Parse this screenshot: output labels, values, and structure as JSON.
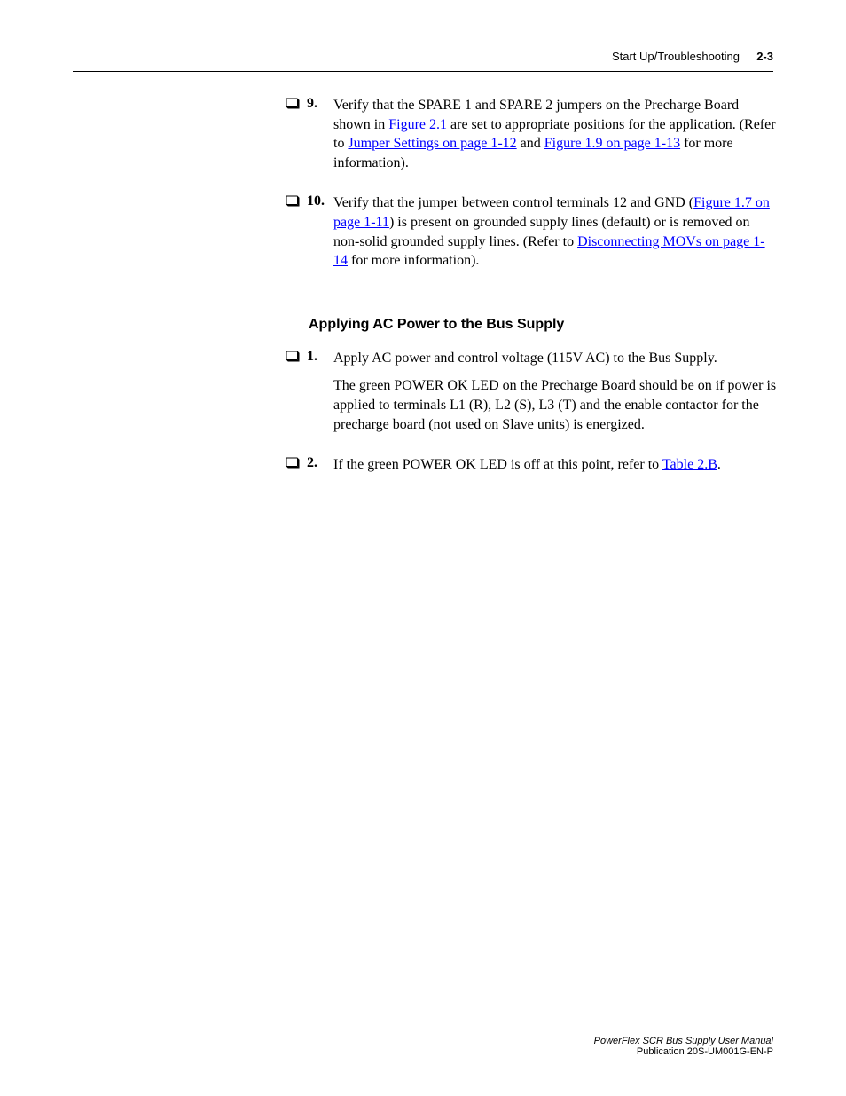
{
  "header": {
    "section": "Start Up/Troubleshooting",
    "page": "2-3"
  },
  "steps_a": [
    {
      "num": "9.",
      "parts": [
        {
          "t": "text",
          "v": "Verify that the SPARE 1 and SPARE 2 jumpers on the Precharge Board shown in "
        },
        {
          "t": "link",
          "v": "Figure 2.1"
        },
        {
          "t": "text",
          "v": " are set to appropriate positions for the application. (Refer to "
        },
        {
          "t": "link",
          "v": "Jumper Settings on page 1-12"
        },
        {
          "t": "text",
          "v": " and "
        },
        {
          "t": "link",
          "v": "Figure 1.9 on page 1-13"
        },
        {
          "t": "text",
          "v": " for more information)."
        }
      ]
    },
    {
      "num": "10.",
      "parts": [
        {
          "t": "text",
          "v": "Verify that the jumper between control terminals 12 and GND ("
        },
        {
          "t": "link",
          "v": "Figure 1.7 on page 1-11"
        },
        {
          "t": "text",
          "v": ") is present on grounded supply lines (default) or is removed on non-solid grounded supply lines. (Refer to "
        },
        {
          "t": "link",
          "v": "Disconnecting MOVs on page 1-14"
        },
        {
          "t": "text",
          "v": " for more information)."
        }
      ]
    }
  ],
  "section_heading": "Applying AC Power to the Bus Supply",
  "steps_b": [
    {
      "num": "1.",
      "parts": [
        {
          "t": "text",
          "v": "Apply AC power and control voltage (115V AC) to the Bus Supply."
        }
      ],
      "extra": "The green POWER OK LED on the Precharge Board should be on if power is applied to terminals L1 (R), L2 (S), L3 (T) and the enable contactor for the precharge board (not used on Slave units) is energized."
    },
    {
      "num": "2.",
      "parts": [
        {
          "t": "text",
          "v": "If the green POWER OK LED is off at this point, refer to "
        },
        {
          "t": "link",
          "v": "Table 2.B"
        },
        {
          "t": "text",
          "v": "."
        }
      ]
    }
  ],
  "footer": {
    "line1": "PowerFlex SCR Bus Supply User Manual",
    "line2": "Publication 20S-UM001G-EN-P"
  },
  "colors": {
    "link": "#0000ff",
    "text": "#000000",
    "rule": "#000000",
    "bg": "#ffffff"
  }
}
